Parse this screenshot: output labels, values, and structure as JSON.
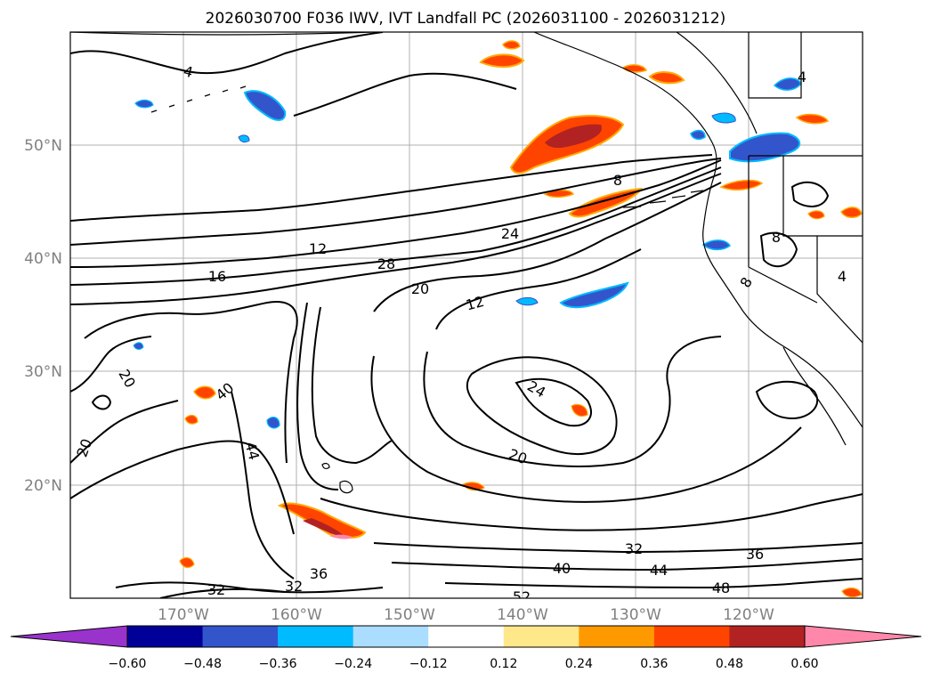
{
  "title": "2026030700 F036 IWV, IVT Landfall PC (2026031100 - 2026031212)",
  "lat_labels": [
    "50°N",
    "40°N",
    "30°N",
    "20°N"
  ],
  "lon_labels": [
    "170°W",
    "160°W",
    "150°W",
    "140°W",
    "130°W",
    "120°W"
  ],
  "colorbar": {
    "tick_labels": [
      "−0.60",
      "−0.48",
      "−0.36",
      "−0.24",
      "−0.12",
      "0.12",
      "0.24",
      "0.36",
      "0.48",
      "0.60"
    ],
    "colors": {
      "under": "#9933cc",
      "bins": [
        "#000099",
        "#3355cc",
        "#00bbff",
        "#aaddff",
        "#ffffff",
        "#ffe88a",
        "#ff9900",
        "#ff4400",
        "#b22222"
      ],
      "over": "#ff88aa"
    }
  },
  "contour_labels": [
    "4",
    "8",
    "12",
    "16",
    "20",
    "24",
    "28",
    "12",
    "20",
    "40",
    "44",
    "20",
    "24",
    "20",
    "36",
    "32",
    "32",
    "40",
    "44",
    "48",
    "36",
    "52",
    "32",
    "4",
    "8",
    "8",
    "4"
  ],
  "map": {
    "region": "North-East Pacific",
    "projection": "PlateCarree",
    "lon_range": [
      -180,
      -110
    ],
    "lat_range": [
      10,
      60
    ]
  }
}
